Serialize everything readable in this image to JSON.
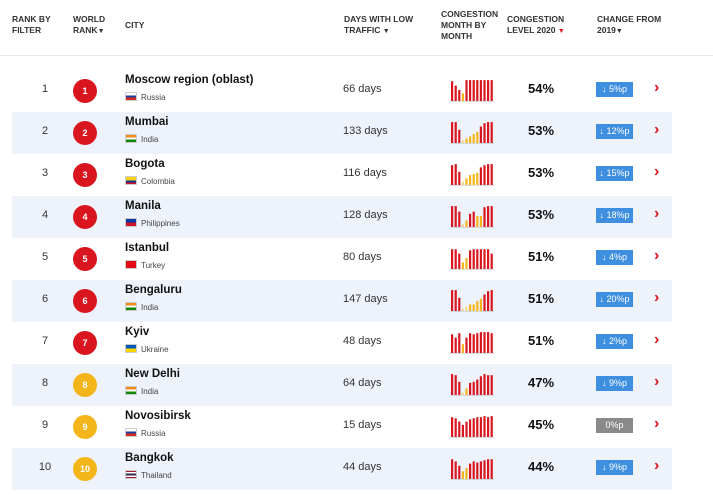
{
  "header": {
    "rank_by_filter": [
      "RANK BY",
      "FILTER"
    ],
    "world_rank": [
      "WORLD",
      "RANK"
    ],
    "city": "CITY",
    "days_low_traffic": [
      "DAYS WITH LOW",
      "TRAFFIC"
    ],
    "congestion_month": [
      "CONGESTION",
      "MONTH BY",
      "MONTH"
    ],
    "congestion_level": [
      "CONGESTION",
      "LEVEL 2020"
    ],
    "change_from": [
      "CHANGE FROM",
      "2019"
    ],
    "arrow": "▼"
  },
  "colors": {
    "high": "#d9161f",
    "mid": "#f3b51a",
    "low": "#f3d98a",
    "down": "#3e8fe0",
    "zero": "#8a8a8a"
  },
  "rows": [
    {
      "rank": "1",
      "world": "1",
      "badge": "red",
      "city": "Moscow region (oblast)",
      "country": "Russia",
      "flag": "russia",
      "days": "66 days",
      "level": "54%",
      "change": "↓ 5%p",
      "dir": "down",
      "months": [
        0.9,
        0.7,
        0.5,
        0.35,
        0.95,
        0.95,
        0.95,
        0.95,
        0.95,
        0.95,
        0.95,
        0.95
      ],
      "mcolors": [
        "high",
        "high",
        "high",
        "mid",
        "high",
        "high",
        "high",
        "high",
        "high",
        "high",
        "high",
        "high"
      ]
    },
    {
      "rank": "2",
      "world": "2",
      "badge": "red",
      "city": "Mumbai",
      "country": "India",
      "flag": "india",
      "days": "133 days",
      "level": "53%",
      "change": "↓ 12%p",
      "dir": "down",
      "months": [
        0.95,
        0.95,
        0.6,
        0.12,
        0.2,
        0.3,
        0.4,
        0.5,
        0.75,
        0.9,
        0.95,
        0.95
      ],
      "mcolors": [
        "high",
        "high",
        "high",
        "low",
        "mid",
        "mid",
        "mid",
        "mid",
        "high",
        "high",
        "high",
        "high"
      ]
    },
    {
      "rank": "3",
      "world": "3",
      "badge": "red",
      "city": "Bogota",
      "country": "Colombia",
      "flag": "colombia",
      "days": "116 days",
      "level": "53%",
      "change": "↓ 15%p",
      "dir": "down",
      "months": [
        0.9,
        0.95,
        0.6,
        0.15,
        0.3,
        0.45,
        0.5,
        0.55,
        0.8,
        0.9,
        0.95,
        0.95
      ],
      "mcolors": [
        "high",
        "high",
        "high",
        "low",
        "mid",
        "mid",
        "mid",
        "mid",
        "high",
        "high",
        "high",
        "high"
      ]
    },
    {
      "rank": "4",
      "world": "4",
      "badge": "red",
      "city": "Manila",
      "country": "Philippines",
      "flag": "philippines",
      "days": "128 days",
      "level": "53%",
      "change": "↓ 18%p",
      "dir": "down",
      "months": [
        0.95,
        0.95,
        0.7,
        0.12,
        0.3,
        0.6,
        0.7,
        0.5,
        0.5,
        0.9,
        0.95,
        0.95
      ],
      "mcolors": [
        "high",
        "high",
        "high",
        "low",
        "mid",
        "high",
        "high",
        "mid",
        "mid",
        "high",
        "high",
        "high"
      ]
    },
    {
      "rank": "5",
      "world": "5",
      "badge": "red",
      "city": "Istanbul",
      "country": "Turkey",
      "flag": "turkey",
      "days": "80 days",
      "level": "51%",
      "change": "↓ 4%p",
      "dir": "down",
      "months": [
        0.9,
        0.9,
        0.7,
        0.3,
        0.5,
        0.85,
        0.9,
        0.9,
        0.9,
        0.9,
        0.9,
        0.7
      ],
      "mcolors": [
        "high",
        "high",
        "high",
        "mid",
        "mid",
        "high",
        "high",
        "high",
        "high",
        "high",
        "high",
        "high"
      ]
    },
    {
      "rank": "6",
      "world": "6",
      "badge": "red",
      "city": "Bengaluru",
      "country": "India",
      "flag": "india",
      "days": "147 days",
      "level": "51%",
      "change": "↓ 20%p",
      "dir": "down",
      "months": [
        0.95,
        0.95,
        0.6,
        0.1,
        0.2,
        0.3,
        0.3,
        0.45,
        0.55,
        0.75,
        0.9,
        0.95
      ],
      "mcolors": [
        "high",
        "high",
        "high",
        "low",
        "low",
        "mid",
        "mid",
        "mid",
        "mid",
        "high",
        "high",
        "high"
      ]
    },
    {
      "rank": "7",
      "world": "7",
      "badge": "red",
      "city": "Kyiv",
      "country": "Ukraine",
      "flag": "ukraine",
      "days": "48 days",
      "level": "51%",
      "change": "↓ 2%p",
      "dir": "down",
      "months": [
        0.85,
        0.7,
        0.9,
        0.4,
        0.7,
        0.9,
        0.85,
        0.9,
        0.95,
        0.95,
        0.95,
        0.9
      ],
      "mcolors": [
        "high",
        "high",
        "high",
        "mid",
        "high",
        "high",
        "high",
        "high",
        "high",
        "high",
        "high",
        "high"
      ]
    },
    {
      "rank": "8",
      "world": "8",
      "badge": "yellow",
      "city": "New Delhi",
      "country": "India",
      "flag": "india",
      "days": "64 days",
      "level": "47%",
      "change": "↓ 9%p",
      "dir": "down",
      "months": [
        0.95,
        0.9,
        0.6,
        0.1,
        0.3,
        0.55,
        0.6,
        0.7,
        0.85,
        0.95,
        0.9,
        0.9
      ],
      "mcolors": [
        "high",
        "high",
        "high",
        "low",
        "mid",
        "high",
        "high",
        "high",
        "high",
        "high",
        "high",
        "high"
      ]
    },
    {
      "rank": "9",
      "world": "9",
      "badge": "yellow",
      "city": "Novosibirsk",
      "country": "Russia",
      "flag": "russia",
      "days": "15 days",
      "level": "45%",
      "change": "0%p",
      "dir": "zero",
      "months": [
        0.9,
        0.85,
        0.7,
        0.55,
        0.7,
        0.8,
        0.85,
        0.9,
        0.9,
        0.95,
        0.9,
        0.95
      ],
      "mcolors": [
        "high",
        "high",
        "high",
        "high",
        "high",
        "high",
        "high",
        "high",
        "high",
        "high",
        "high",
        "high"
      ]
    },
    {
      "rank": "10",
      "world": "10",
      "badge": "yellow",
      "city": "Bangkok",
      "country": "Thailand",
      "flag": "thailand",
      "days": "44 days",
      "level": "44%",
      "change": "↓ 9%p",
      "dir": "down",
      "months": [
        0.9,
        0.8,
        0.6,
        0.35,
        0.5,
        0.7,
        0.8,
        0.75,
        0.8,
        0.85,
        0.9,
        0.9
      ],
      "mcolors": [
        "high",
        "high",
        "high",
        "mid",
        "mid",
        "high",
        "high",
        "high",
        "high",
        "high",
        "high",
        "high"
      ]
    }
  ]
}
